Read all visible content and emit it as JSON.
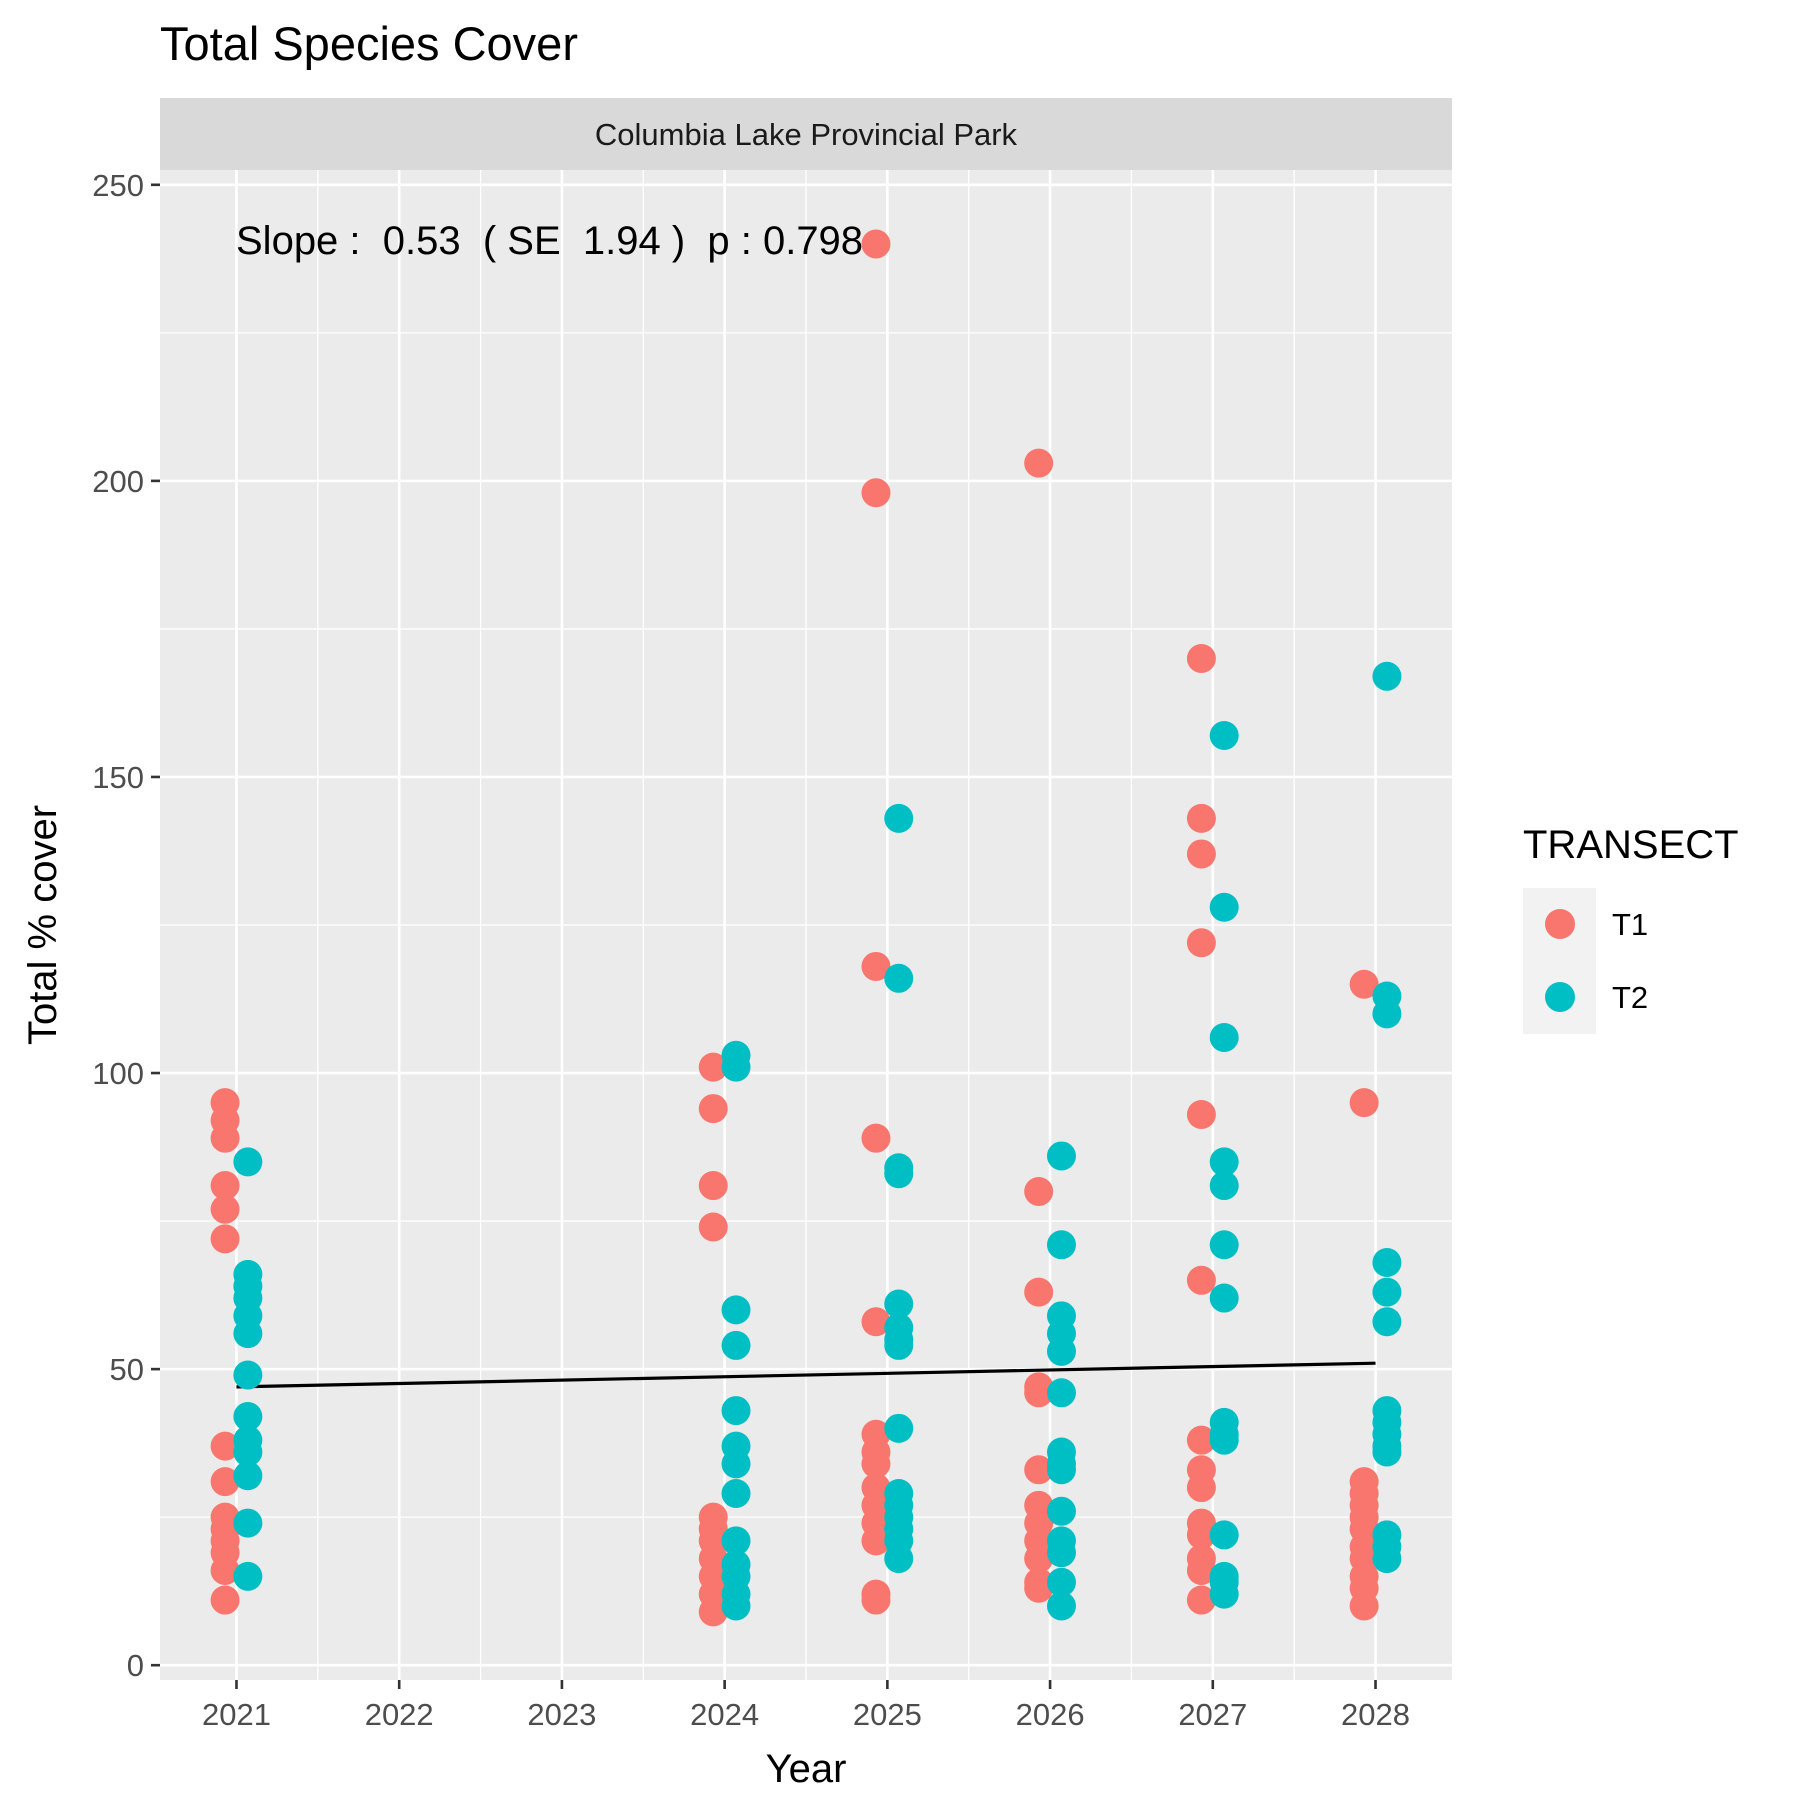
{
  "chart_data": {
    "type": "scatter",
    "title": "Total Species Cover",
    "facet_label": "Columbia Lake Provincial Park",
    "annotation": "Slope :  0.53  ( SE  1.94 )  p : 0.798",
    "xlabel": "Year",
    "ylabel": "Total % cover",
    "x_ticks": [
      2021,
      2022,
      2023,
      2024,
      2025,
      2026,
      2027,
      2028
    ],
    "y_ticks": [
      0,
      50,
      100,
      150,
      200,
      250
    ],
    "xlim": [
      2020.53,
      2028.47
    ],
    "ylim": [
      -2.5,
      252.5
    ],
    "legend": {
      "title": "TRANSECT",
      "position": "right",
      "entries": [
        {
          "label": "T1",
          "color": "#F8766D"
        },
        {
          "label": "T2",
          "color": "#00BFC4"
        }
      ]
    },
    "series": [
      {
        "name": "T1",
        "color": "#F8766D",
        "points": [
          [
            2021,
            95
          ],
          [
            2021,
            92
          ],
          [
            2021,
            89
          ],
          [
            2021,
            81
          ],
          [
            2021,
            77
          ],
          [
            2021,
            72
          ],
          [
            2021,
            37
          ],
          [
            2021,
            31
          ],
          [
            2021,
            25
          ],
          [
            2021,
            23
          ],
          [
            2021,
            21
          ],
          [
            2021,
            19
          ],
          [
            2021,
            16
          ],
          [
            2021,
            11
          ],
          [
            2024,
            101
          ],
          [
            2024,
            94
          ],
          [
            2024,
            81
          ],
          [
            2024,
            74
          ],
          [
            2024,
            25
          ],
          [
            2024,
            23
          ],
          [
            2024,
            21
          ],
          [
            2024,
            18
          ],
          [
            2024,
            15
          ],
          [
            2024,
            12
          ],
          [
            2024,
            9
          ],
          [
            2025,
            240
          ],
          [
            2025,
            198
          ],
          [
            2025,
            118
          ],
          [
            2025,
            89
          ],
          [
            2025,
            58
          ],
          [
            2025,
            39
          ],
          [
            2025,
            36
          ],
          [
            2025,
            34
          ],
          [
            2025,
            30
          ],
          [
            2025,
            27
          ],
          [
            2025,
            24
          ],
          [
            2025,
            21
          ],
          [
            2025,
            12
          ],
          [
            2025,
            11
          ],
          [
            2026,
            203
          ],
          [
            2026,
            80
          ],
          [
            2026,
            63
          ],
          [
            2026,
            47
          ],
          [
            2026,
            46
          ],
          [
            2026,
            33
          ],
          [
            2026,
            27
          ],
          [
            2026,
            24
          ],
          [
            2026,
            21
          ],
          [
            2026,
            18
          ],
          [
            2026,
            14
          ],
          [
            2026,
            13
          ],
          [
            2027,
            170
          ],
          [
            2027,
            143
          ],
          [
            2027,
            137
          ],
          [
            2027,
            122
          ],
          [
            2027,
            93
          ],
          [
            2027,
            65
          ],
          [
            2027,
            38
          ],
          [
            2027,
            33
          ],
          [
            2027,
            30
          ],
          [
            2027,
            24
          ],
          [
            2027,
            22
          ],
          [
            2027,
            18
          ],
          [
            2027,
            16
          ],
          [
            2027,
            11
          ],
          [
            2028,
            115
          ],
          [
            2028,
            95
          ],
          [
            2028,
            31
          ],
          [
            2028,
            29
          ],
          [
            2028,
            27
          ],
          [
            2028,
            25
          ],
          [
            2028,
            23
          ],
          [
            2028,
            20
          ],
          [
            2028,
            18
          ],
          [
            2028,
            15
          ],
          [
            2028,
            13
          ],
          [
            2028,
            10
          ]
        ]
      },
      {
        "name": "T2",
        "color": "#00BFC4",
        "points": [
          [
            2021,
            85
          ],
          [
            2021,
            66
          ],
          [
            2021,
            64
          ],
          [
            2021,
            62
          ],
          [
            2021,
            59
          ],
          [
            2021,
            56
          ],
          [
            2021,
            49
          ],
          [
            2021,
            42
          ],
          [
            2021,
            38
          ],
          [
            2021,
            36
          ],
          [
            2021,
            32
          ],
          [
            2021,
            24
          ],
          [
            2021,
            15
          ],
          [
            2024,
            103
          ],
          [
            2024,
            101
          ],
          [
            2024,
            60
          ],
          [
            2024,
            54
          ],
          [
            2024,
            43
          ],
          [
            2024,
            37
          ],
          [
            2024,
            34
          ],
          [
            2024,
            29
          ],
          [
            2024,
            21
          ],
          [
            2024,
            17
          ],
          [
            2024,
            15
          ],
          [
            2024,
            12
          ],
          [
            2024,
            10
          ],
          [
            2025,
            143
          ],
          [
            2025,
            116
          ],
          [
            2025,
            84
          ],
          [
            2025,
            83
          ],
          [
            2025,
            61
          ],
          [
            2025,
            57
          ],
          [
            2025,
            55
          ],
          [
            2025,
            54
          ],
          [
            2025,
            40
          ],
          [
            2025,
            29
          ],
          [
            2025,
            27
          ],
          [
            2025,
            25
          ],
          [
            2025,
            23
          ],
          [
            2025,
            21
          ],
          [
            2025,
            18
          ],
          [
            2026,
            86
          ],
          [
            2026,
            71
          ],
          [
            2026,
            59
          ],
          [
            2026,
            56
          ],
          [
            2026,
            53
          ],
          [
            2026,
            46
          ],
          [
            2026,
            36
          ],
          [
            2026,
            34
          ],
          [
            2026,
            33
          ],
          [
            2026,
            26
          ],
          [
            2026,
            21
          ],
          [
            2026,
            19
          ],
          [
            2026,
            14
          ],
          [
            2026,
            10
          ],
          [
            2027,
            157
          ],
          [
            2027,
            128
          ],
          [
            2027,
            106
          ],
          [
            2027,
            85
          ],
          [
            2027,
            81
          ],
          [
            2027,
            71
          ],
          [
            2027,
            62
          ],
          [
            2027,
            41
          ],
          [
            2027,
            39
          ],
          [
            2027,
            38
          ],
          [
            2027,
            22
          ],
          [
            2027,
            15
          ],
          [
            2027,
            14
          ],
          [
            2027,
            12
          ],
          [
            2028,
            167
          ],
          [
            2028,
            113
          ],
          [
            2028,
            110
          ],
          [
            2028,
            68
          ],
          [
            2028,
            63
          ],
          [
            2028,
            58
          ],
          [
            2028,
            43
          ],
          [
            2028,
            41
          ],
          [
            2028,
            39
          ],
          [
            2028,
            37
          ],
          [
            2028,
            36
          ],
          [
            2028,
            22
          ],
          [
            2028,
            20
          ],
          [
            2028,
            18
          ]
        ]
      }
    ],
    "trend_line": {
      "color": "#000000",
      "x": [
        2021,
        2028
      ],
      "y": [
        47,
        51
      ]
    }
  }
}
